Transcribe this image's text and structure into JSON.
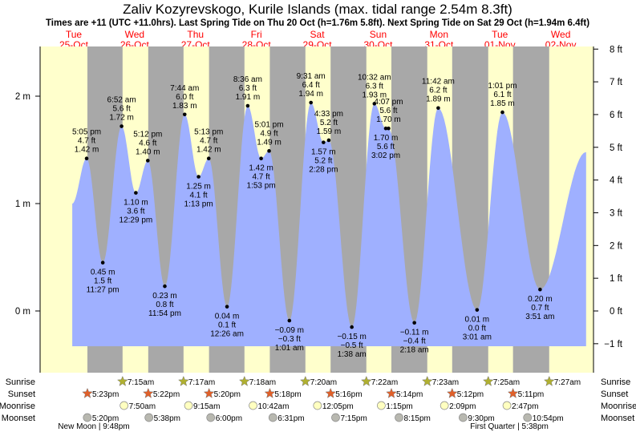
{
  "header": {
    "title": "Zaliv Kozyrevskogo, Kurile Islands (max. tidal range 2.54m 8.3ft)",
    "subtitle": "Times are +11 (UTC +11.0hrs). Last Spring Tide on Thu 20 Oct (h=1.76m 5.8ft). Next Spring Tide on Sat 29 Oct (h=1.94m 6.4ft)"
  },
  "colors": {
    "day": "#ffffcc",
    "night": "#a8a8a8",
    "water": "#9fb0ff",
    "date_text": "#ff0000",
    "sunrise": "#b0b030",
    "sunset": "#e0602a",
    "moonrise": "#ffffc0",
    "moonset": "#b8b8b0"
  },
  "chart_data": {
    "type": "area",
    "title": "Zaliv Kozyrevskogo, Kurile Islands (max. tidal range 2.54m 8.3ft)",
    "days": [
      {
        "dow": "Tue",
        "date": "25-Oct"
      },
      {
        "dow": "Wed",
        "date": "26-Oct"
      },
      {
        "dow": "Thu",
        "date": "27-Oct"
      },
      {
        "dow": "Fri",
        "date": "28-Oct"
      },
      {
        "dow": "Sat",
        "date": "29-Oct"
      },
      {
        "dow": "Sun",
        "date": "30-Oct"
      },
      {
        "dow": "Mon",
        "date": "31-Oct"
      },
      {
        "dow": "Tue",
        "date": "01-Nov"
      },
      {
        "dow": "Wed",
        "date": "02-Nov"
      }
    ],
    "y_left": {
      "unit": "m",
      "ylim": [
        -0.34,
        2.46
      ],
      "ticks": [
        {
          "v": 0,
          "label": "0 m"
        },
        {
          "v": 1,
          "label": "1 m"
        },
        {
          "v": 2,
          "label": "2 m"
        }
      ]
    },
    "y_right": {
      "unit": "ft",
      "ticks": [
        "−1 ft",
        "0 ft",
        "1 ft",
        "2 ft",
        "3 ft",
        "4 ft",
        "5 ft",
        "6 ft",
        "7 ft",
        "8 ft"
      ],
      "tick_values": [
        -1,
        0,
        1,
        2,
        3,
        4,
        5,
        6,
        7,
        8
      ]
    },
    "series_start": {
      "day": 0,
      "time24": "11:25",
      "m": 1.0
    },
    "series_end": {
      "day": 8,
      "time24": "22:00",
      "m": 1.48
    },
    "extremes": [
      {
        "day": 0,
        "time24": "17:05",
        "time": "5:05 pm",
        "m": "1.42",
        "ft": "4.7",
        "type": "high"
      },
      {
        "day": 0,
        "time24": "23:27",
        "time": "11:27 pm",
        "m": "0.45",
        "ft": "1.5",
        "type": "low"
      },
      {
        "day": 1,
        "time24": "06:52",
        "time": "6:52 am",
        "m": "1.72",
        "ft": "5.6",
        "type": "high"
      },
      {
        "day": 1,
        "time24": "12:29",
        "time": "12:29 pm",
        "m": "1.10",
        "ft": "3.6",
        "type": "low"
      },
      {
        "day": 1,
        "time24": "17:12",
        "time": "5:12 pm",
        "m": "1.40",
        "ft": "4.6",
        "type": "high"
      },
      {
        "day": 1,
        "time24": "23:54",
        "time": "11:54 pm",
        "m": "0.23",
        "ft": "0.8",
        "type": "low"
      },
      {
        "day": 2,
        "time24": "07:44",
        "time": "7:44 am",
        "m": "1.83",
        "ft": "6.0",
        "type": "high"
      },
      {
        "day": 2,
        "time24": "13:13",
        "time": "1:13 pm",
        "m": "1.25",
        "ft": "4.1",
        "type": "low"
      },
      {
        "day": 2,
        "time24": "17:13",
        "time": "5:13 pm",
        "m": "1.42",
        "ft": "4.7",
        "type": "high"
      },
      {
        "day": 3,
        "time24": "00:26",
        "time": "12:26 am",
        "m": "0.04",
        "ft": "0.1",
        "type": "low"
      },
      {
        "day": 3,
        "time24": "08:36",
        "time": "8:36 am",
        "m": "1.91",
        "ft": "6.3",
        "type": "high"
      },
      {
        "day": 3,
        "time24": "13:53",
        "time": "1:53 pm",
        "m": "1.42",
        "ft": "4.7",
        "type": "low"
      },
      {
        "day": 3,
        "time24": "17:01",
        "time": "5:01 pm",
        "m": "1.49",
        "ft": "4.9",
        "type": "high"
      },
      {
        "day": 4,
        "time24": "01:01",
        "time": "1:01 am",
        "m": "−0.09",
        "ft": "−0.3",
        "type": "low"
      },
      {
        "day": 4,
        "time24": "09:31",
        "time": "9:31 am",
        "m": "1.94",
        "ft": "6.4",
        "type": "high"
      },
      {
        "day": 4,
        "time24": "14:28",
        "time": "2:28 pm",
        "m": "1.57",
        "ft": "5.2",
        "type": "low"
      },
      {
        "day": 4,
        "time24": "16:33",
        "time": "4:33 pm",
        "m": "1.59",
        "ft": "5.2",
        "type": "high"
      },
      {
        "day": 5,
        "time24": "01:38",
        "time": "1:38 am",
        "m": "−0.15",
        "ft": "−0.5",
        "type": "low"
      },
      {
        "day": 5,
        "time24": "10:32",
        "time": "10:32 am",
        "m": "1.93",
        "ft": "6.3",
        "type": "high"
      },
      {
        "day": 5,
        "time24": "15:02",
        "time": "3:02 pm",
        "m": "1.70",
        "ft": "5.6",
        "type": "low"
      },
      {
        "day": 5,
        "time24": "16:07",
        "time": "4:07 pm",
        "m": "1.70",
        "ft": "5.6",
        "type": "high"
      },
      {
        "day": 6,
        "time24": "02:18",
        "time": "2:18 am",
        "m": "−0.11",
        "ft": "−0.4",
        "type": "low"
      },
      {
        "day": 6,
        "time24": "11:42",
        "time": "11:42 am",
        "m": "1.89",
        "ft": "6.2",
        "type": "high"
      },
      {
        "day": 7,
        "time24": "03:01",
        "time": "3:01 am",
        "m": "0.01",
        "ft": "0.0",
        "type": "low"
      },
      {
        "day": 7,
        "time24": "13:01",
        "time": "1:01 pm",
        "m": "1.85",
        "ft": "6.1",
        "type": "high"
      },
      {
        "day": 8,
        "time24": "03:51",
        "time": "3:51 am",
        "m": "0.20",
        "ft": "0.7",
        "type": "low"
      }
    ]
  },
  "rows": {
    "sunrise": {
      "label": "Sunrise",
      "events": [
        {
          "day": 1,
          "time24": "07:15",
          "text": "7:15am"
        },
        {
          "day": 2,
          "time24": "07:17",
          "text": "7:17am"
        },
        {
          "day": 3,
          "time24": "07:18",
          "text": "7:18am"
        },
        {
          "day": 4,
          "time24": "07:20",
          "text": "7:20am"
        },
        {
          "day": 5,
          "time24": "07:22",
          "text": "7:22am"
        },
        {
          "day": 6,
          "time24": "07:23",
          "text": "7:23am"
        },
        {
          "day": 7,
          "time24": "07:25",
          "text": "7:25am"
        },
        {
          "day": 8,
          "time24": "07:27",
          "text": "7:27am"
        }
      ]
    },
    "sunset": {
      "label": "Sunset",
      "events": [
        {
          "day": 0,
          "time24": "17:23",
          "text": "5:23pm"
        },
        {
          "day": 1,
          "time24": "17:22",
          "text": "5:22pm"
        },
        {
          "day": 2,
          "time24": "17:20",
          "text": "5:20pm"
        },
        {
          "day": 3,
          "time24": "17:18",
          "text": "5:18pm"
        },
        {
          "day": 4,
          "time24": "17:16",
          "text": "5:16pm"
        },
        {
          "day": 5,
          "time24": "17:14",
          "text": "5:14pm"
        },
        {
          "day": 6,
          "time24": "17:12",
          "text": "5:12pm"
        },
        {
          "day": 7,
          "time24": "17:11",
          "text": "5:11pm"
        }
      ]
    },
    "moonrise": {
      "label": "Moonrise",
      "events": [
        {
          "day": 1,
          "time24": "07:50",
          "text": "7:50am"
        },
        {
          "day": 2,
          "time24": "09:15",
          "text": "9:15am"
        },
        {
          "day": 3,
          "time24": "10:42",
          "text": "10:42am"
        },
        {
          "day": 4,
          "time24": "12:05",
          "text": "12:05pm"
        },
        {
          "day": 5,
          "time24": "13:15",
          "text": "1:15pm"
        },
        {
          "day": 6,
          "time24": "14:09",
          "text": "2:09pm"
        },
        {
          "day": 7,
          "time24": "14:47",
          "text": "2:47pm"
        }
      ]
    },
    "moonset": {
      "label": "Moonset",
      "events": [
        {
          "day": 0,
          "time24": "17:20",
          "text": "5:20pm"
        },
        {
          "day": 1,
          "time24": "17:38",
          "text": "5:38pm"
        },
        {
          "day": 2,
          "time24": "18:00",
          "text": "6:00pm"
        },
        {
          "day": 3,
          "time24": "18:31",
          "text": "6:31pm"
        },
        {
          "day": 4,
          "time24": "19:15",
          "text": "7:15pm"
        },
        {
          "day": 5,
          "time24": "20:15",
          "text": "8:15pm"
        },
        {
          "day": 6,
          "time24": "21:30",
          "text": "9:30pm"
        },
        {
          "day": 7,
          "time24": "22:54",
          "text": "10:54pm"
        }
      ]
    },
    "moon_phases": [
      {
        "day": 0,
        "time24": "21:48",
        "text": "New Moon | 9:48pm"
      },
      {
        "day": 7,
        "time24": "17:38",
        "text": "First Quarter | 5:38pm"
      }
    ]
  }
}
